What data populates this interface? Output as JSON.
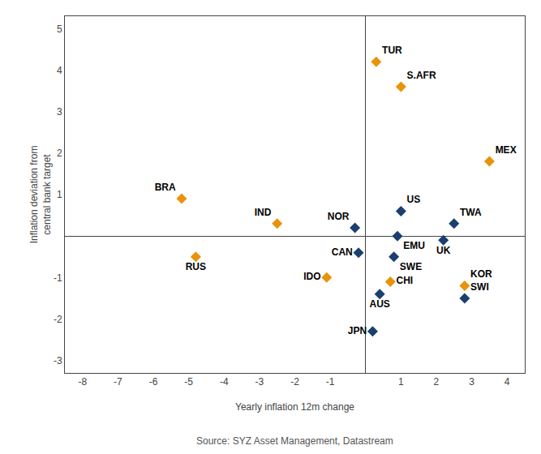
{
  "chart_data": {
    "type": "scatter",
    "xlabel": "Yearly inflation 12m change",
    "ylabel": "Inflation deviation from\ncentral bank target",
    "annotations": [
      "Source: SYZ Asset Management, Datastream"
    ],
    "series": [
      {
        "color": "#E8930A",
        "marker": "diamond",
        "labels": [
          "TUR",
          "S.AFR",
          "MEX",
          "BRA",
          "IND",
          "IDO",
          "CHI",
          "KOR",
          "RUS"
        ],
        "x": [
          0.3,
          1.0,
          3.5,
          -5.2,
          -2.5,
          -1.1,
          0.7,
          2.8,
          -4.8
        ],
        "values": [
          4.2,
          3.6,
          1.8,
          0.9,
          0.3,
          -1.0,
          -1.1,
          -1.2,
          -0.5
        ]
      },
      {
        "color": "#1B3F6E",
        "marker": "diamond",
        "labels": [
          "NOR",
          "US",
          "TWA",
          "EMU",
          "UK",
          "CAN",
          "SWE",
          "SWI",
          "JPN",
          "AUS"
        ],
        "x": [
          -0.3,
          1.0,
          2.5,
          0.9,
          2.2,
          -0.2,
          0.8,
          2.8,
          0.2,
          0.4
        ],
        "values": [
          0.2,
          0.6,
          0.3,
          0.0,
          -0.1,
          -0.4,
          -0.5,
          -1.5,
          -2.3,
          -1.4
        ]
      }
    ],
    "xlim": [
      -8.5,
      4.5
    ],
    "ylim": [
      -3.3,
      5.3
    ],
    "xticks": [
      -8,
      -7,
      -6,
      -5,
      -4,
      -3,
      -2,
      -1,
      1,
      2,
      3,
      4
    ],
    "yticks": [
      -3,
      -2,
      -1,
      1,
      2,
      3,
      4,
      5
    ],
    "grid": false
  }
}
